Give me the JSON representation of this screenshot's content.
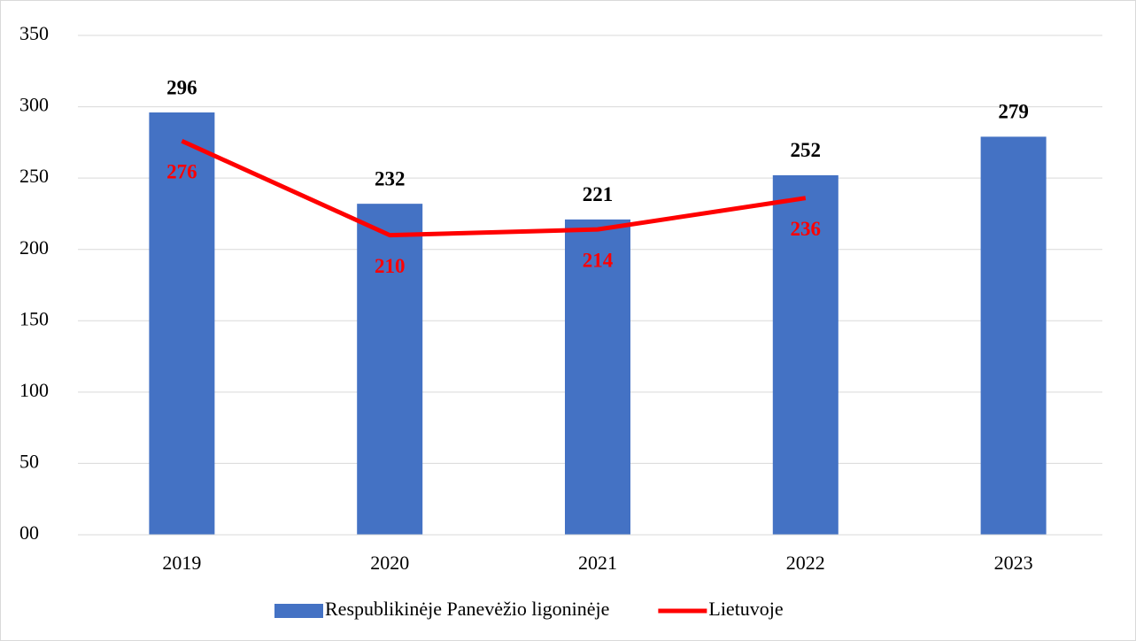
{
  "chart_data": {
    "type": "bar",
    "categories": [
      "2019",
      "2020",
      "2021",
      "2022",
      "2023"
    ],
    "series": [
      {
        "name": "Respublikinėje Panevėžio ligoninėje",
        "type": "bar",
        "color": "#4472c4",
        "label_color": "#000000",
        "values": [
          296,
          232,
          221,
          252,
          279
        ]
      },
      {
        "name": "Lietuvoje",
        "type": "line",
        "color": "#ff0000",
        "label_color": "#ff0000",
        "values": [
          276,
          210,
          214,
          236,
          null
        ]
      }
    ],
    "ylim": [
      0,
      350
    ],
    "yticks": [
      {
        "value": 0,
        "label": "00"
      },
      50,
      100,
      150,
      200,
      250,
      300,
      350
    ],
    "grid": true,
    "legend": "bottom"
  }
}
